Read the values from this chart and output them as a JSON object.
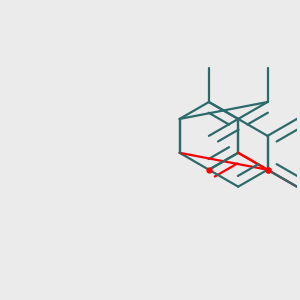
{
  "background_color": "#ebebeb",
  "bond_color": "#2d6b6b",
  "oxygen_color": "#ff0000",
  "bond_width": 1.6,
  "figsize": [
    3.0,
    3.0
  ],
  "dpi": 100,
  "BL": 0.115
}
